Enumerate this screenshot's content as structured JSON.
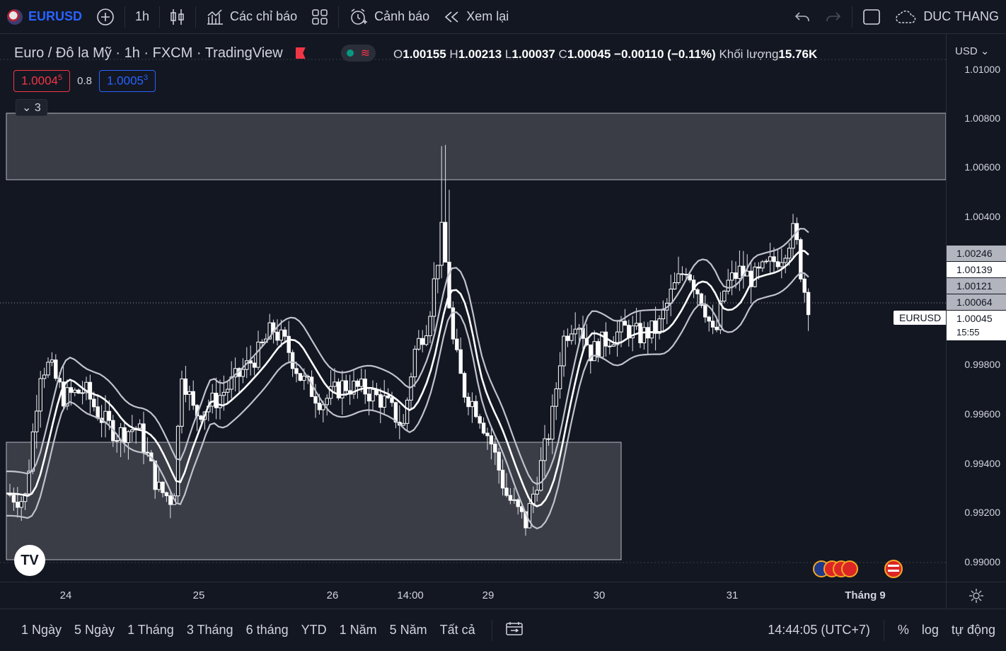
{
  "toolbar": {
    "symbol": "EURUSD",
    "interval": "1h",
    "indicators_label": "Các chỉ báo",
    "alerts_label": "Cảnh báo",
    "replay_label": "Xem lại",
    "user_name": "DUC THANG"
  },
  "legend": {
    "title": "Euro / Đô la Mỹ · 1h · FXCM · TradingView",
    "open_key": "O",
    "open": "1.00155",
    "high_key": "H",
    "high": "1.00213",
    "low_key": "L",
    "low": "1.00037",
    "close_key": "C",
    "close": "1.00045",
    "change": "−0.00110 (−0.11%)",
    "volume_label": "Khối lượng",
    "volume": "15.76K",
    "bid": "1.0004",
    "bid_sup": "5",
    "spread": "0.8",
    "ask": "1.0005",
    "ask_sup": "3",
    "collapse_count": "3"
  },
  "price_axis": {
    "currency": "USD",
    "labels": [
      "1.01000",
      "1.00800",
      "1.00600",
      "1.00400",
      "0.99800",
      "0.99600",
      "0.99400",
      "0.99200",
      "0.99000"
    ],
    "tags": [
      "1.00246",
      "1.00139",
      "1.00121",
      "1.00064"
    ],
    "current_price": "1.00045",
    "countdown": "15:55",
    "symbol_tag": "EURUSD"
  },
  "time_axis": {
    "labels": [
      "24",
      "25",
      "26",
      "14:00",
      "29",
      "30",
      "31",
      "Tháng 9"
    ]
  },
  "bottom_bar": {
    "ranges": [
      "1 Ngày",
      "5 Ngày",
      "1 Tháng",
      "3 Tháng",
      "6 tháng",
      "YTD",
      "1 Năm",
      "5 Năm",
      "Tất cả"
    ],
    "clock": "14:44:05 (UTC+7)",
    "percent": "%",
    "log": "log",
    "auto": "tự động"
  },
  "colors": {
    "background": "#131722",
    "candle": "#ffffff",
    "ma_outer": "#c0c3cc",
    "ma_center": "#ffffff",
    "zone": "#3a3c46",
    "accent_blue": "#2962ff",
    "accent_red": "#f23645"
  }
}
